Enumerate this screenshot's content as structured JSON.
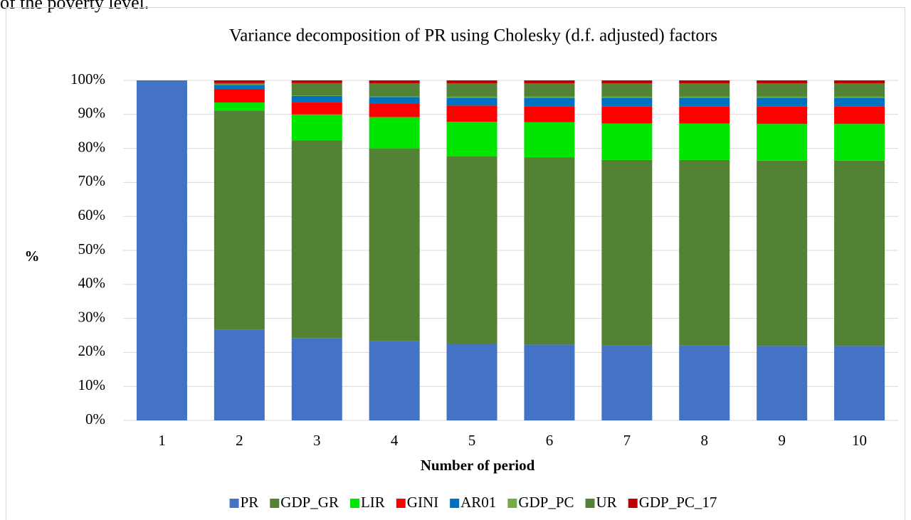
{
  "page_text": "of the poverty level.",
  "chart_data": {
    "type": "stacked_bar",
    "title": "Variance decomposition of PR using Cholesky (d.f. adjusted) factors",
    "x_label": "Number of period",
    "y_label": "%",
    "categories": [
      "1",
      "2",
      "3",
      "4",
      "5",
      "6",
      "7",
      "8",
      "9",
      "10"
    ],
    "ylim": [
      0,
      100
    ],
    "yticks": [
      {
        "value": 0,
        "label": "0%"
      },
      {
        "value": 10,
        "label": "10%"
      },
      {
        "value": 20,
        "label": "20%"
      },
      {
        "value": 30,
        "label": "30%"
      },
      {
        "value": 40,
        "label": "40%"
      },
      {
        "value": 50,
        "label": "50%"
      },
      {
        "value": 60,
        "label": "60%"
      },
      {
        "value": 70,
        "label": "70%"
      },
      {
        "value": 80,
        "label": "80%"
      },
      {
        "value": 90,
        "label": "90%"
      },
      {
        "value": 100,
        "label": "100%"
      }
    ],
    "grid": true,
    "legend": "bottom",
    "series": [
      {
        "name": "PR",
        "color": "#4472c4",
        "values": [
          100,
          26.7,
          24.2,
          23.3,
          22.6,
          22.3,
          22.1,
          22.0,
          21.9,
          21.9
        ]
      },
      {
        "name": "GDP_GR",
        "color": "#548235",
        "values": [
          0,
          64.3,
          58.2,
          56.7,
          55.1,
          55.0,
          54.5,
          54.6,
          54.5,
          54.5
        ]
      },
      {
        "name": "LIR",
        "color": "#00e600",
        "values": [
          0,
          2.5,
          7.6,
          9.2,
          10.1,
          10.4,
          10.7,
          10.7,
          10.8,
          10.8
        ]
      },
      {
        "name": "GINI",
        "color": "#ff0000",
        "values": [
          0,
          4.0,
          3.5,
          3.9,
          4.8,
          4.7,
          5.0,
          5.0,
          5.1,
          5.1
        ]
      },
      {
        "name": "AR01",
        "color": "#0070c0",
        "values": [
          0,
          1.2,
          1.9,
          2.0,
          2.3,
          2.5,
          2.6,
          2.6,
          2.6,
          2.6
        ]
      },
      {
        "name": "GDP_PC",
        "color": "#70ad47",
        "values": [
          0,
          0.1,
          0.2,
          0.2,
          0.3,
          0.3,
          0.3,
          0.3,
          0.3,
          0.3
        ]
      },
      {
        "name": "UR",
        "color": "#538135",
        "values": [
          0,
          0.4,
          3.6,
          3.8,
          3.9,
          3.9,
          3.9,
          3.9,
          3.9,
          3.9
        ]
      },
      {
        "name": "GDP_PC_17",
        "color": "#c00000",
        "values": [
          0,
          0.8,
          0.8,
          0.9,
          0.9,
          0.9,
          0.9,
          0.9,
          0.9,
          0.9
        ]
      }
    ]
  }
}
